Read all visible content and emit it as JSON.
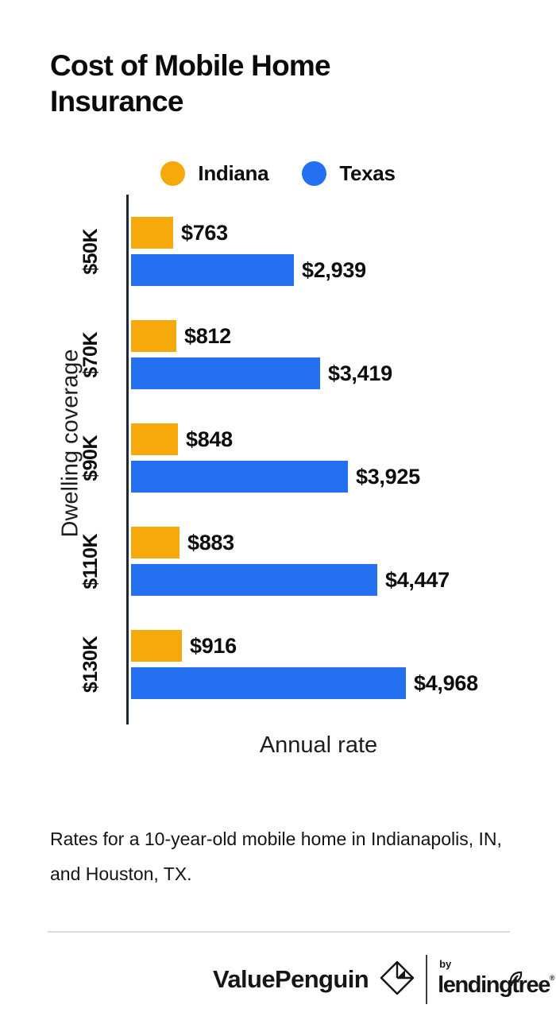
{
  "title": "Cost of Mobile Home Insurance",
  "chart_data": {
    "type": "bar",
    "orientation": "horizontal",
    "title": "Cost of Mobile Home Insurance",
    "xlabel": "Annual rate",
    "ylabel": "Dwelling coverage",
    "categories": [
      "$50K",
      "$70K",
      "$90K",
      "$110K",
      "$130K"
    ],
    "series": [
      {
        "name": "Indiana",
        "color": "#F6A90B",
        "values": [
          763,
          812,
          848,
          883,
          916
        ],
        "labels": [
          "$763",
          "$812",
          "$848",
          "$883",
          "$916"
        ]
      },
      {
        "name": "Texas",
        "color": "#2470F0",
        "values": [
          2939,
          3419,
          3925,
          4447,
          4968
        ],
        "labels": [
          "$2,939",
          "$3,419",
          "$3,925",
          "$4,447",
          "$4,968"
        ]
      }
    ],
    "xlim": [
      0,
      4968
    ],
    "grid": false,
    "legend_position": "top",
    "value_labels_shown": true
  },
  "footnote": {
    "line1": "Rates for a 10-year-old mobile home in Indianapolis, IN,",
    "line2": "and Houston, TX."
  },
  "footer": {
    "valuepenguin": "ValuePenguin",
    "by_label": "by",
    "lendingtree": "lendingtree",
    "registered_mark": "®"
  },
  "colors": {
    "indiana_orange": "#F6A90B",
    "texas_blue": "#2470F0",
    "axis": "#1b2733",
    "text": "#0d0d0d"
  }
}
